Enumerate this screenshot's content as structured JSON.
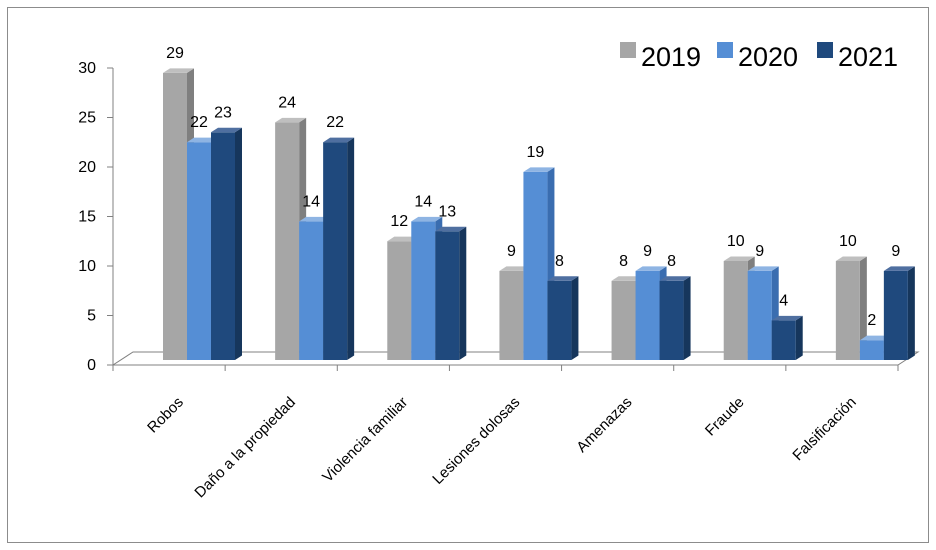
{
  "chart_data": {
    "type": "bar",
    "categories": [
      "Robos",
      "Daño a la propiedad",
      "Violencia familiar",
      "Lesiones dolosas",
      "Amenazas",
      "Fraude",
      "Falsificación"
    ],
    "series": [
      {
        "name": "2019",
        "values": [
          29,
          24,
          12,
          9,
          8,
          10,
          10
        ]
      },
      {
        "name": "2020",
        "values": [
          22,
          14,
          14,
          19,
          9,
          9,
          2
        ]
      },
      {
        "name": "2021",
        "values": [
          23,
          22,
          13,
          8,
          8,
          4,
          9
        ]
      }
    ],
    "yticks": [
      "0",
      "5",
      "10",
      "15",
      "20",
      "25",
      "30"
    ],
    "ylim": [
      0,
      30
    ],
    "grid": false,
    "legend": "top-right",
    "colors": {
      "s2019": {
        "front": "#a6a6a6",
        "top": "#bfbfbf",
        "side": "#7f7f7f"
      },
      "s2020": {
        "front": "#558ed5",
        "top": "#8eb4e3",
        "side": "#3a6db0"
      },
      "s2021": {
        "front": "#1f497d",
        "top": "#4f6fa0",
        "side": "#16365c"
      },
      "axis": "#808080"
    }
  }
}
